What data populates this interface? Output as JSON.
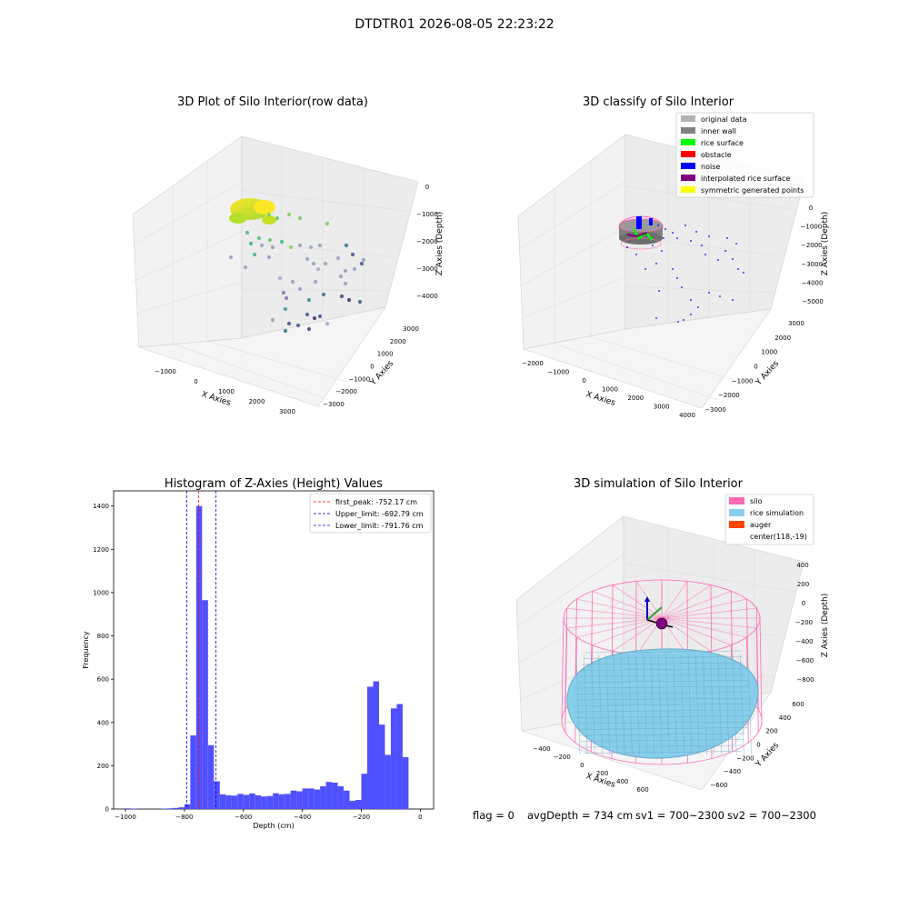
{
  "figure": {
    "suptitle": "DTDTR01 2026-08-05 22:23:22",
    "status_line": {
      "flag": "flag = 0",
      "avg_depth": "avgDepth = 734 cm",
      "sv1": "sv1 = 700~2300",
      "sv2": "sv2 = 700~2300"
    }
  },
  "chart_data": [
    {
      "type": "scatter",
      "projection": "3d",
      "title": "3D Plot of Silo Interior(row data)",
      "xlabel": "X Axies",
      "ylabel": "Y Axies",
      "zlabel": "Z Axies (Depth)",
      "x_ticks": [
        "−1000",
        "0",
        "1000",
        "2000",
        "3000"
      ],
      "y_ticks": [
        "−3000",
        "−2000",
        "−1000",
        "0",
        "1000",
        "2000",
        "3000"
      ],
      "z_ticks": [
        "0",
        "−1000",
        "−2000",
        "−3000",
        "−4000"
      ],
      "colormap": "viridis",
      "series": [
        {
          "points": [
            {
              "x": 420,
              "y": 80,
              "z": -1500
            },
            {
              "x": 1200,
              "y": 300,
              "z": -1800
            },
            {
              "x": 2600,
              "y": -400,
              "z": -2000
            },
            {
              "x": 1800,
              "y": 1200,
              "z": -2500
            },
            {
              "x": 2800,
              "y": 1600,
              "z": -2700
            },
            {
              "x": 1500,
              "y": 1800,
              "z": -3400
            },
            {
              "x": 2600,
              "y": 2400,
              "z": -3600
            },
            {
              "x": 800,
              "y": 1500,
              "z": -3900
            },
            {
              "x": 1800,
              "y": 2500,
              "z": -4200
            }
          ]
        }
      ]
    },
    {
      "type": "scatter",
      "projection": "3d",
      "title": "3D classify of Silo Interior",
      "xlabel": "X Axies",
      "ylabel": "Y Axies",
      "zlabel": "Z Axies (Depth)",
      "x_ticks": [
        "−2000",
        "−1000",
        "0",
        "1000",
        "2000",
        "3000",
        "4000"
      ],
      "y_ticks": [
        "−3000",
        "−2000",
        "−1000",
        "0",
        "1000",
        "2000",
        "3000"
      ],
      "z_ticks": [
        "0",
        "−1000",
        "−2000",
        "−3000",
        "−4000",
        "−5000"
      ],
      "legend": {
        "position": "upper right",
        "entries": [
          {
            "label": "original data",
            "color": "#b4b4b4"
          },
          {
            "label": "inner wall",
            "color": "#808080"
          },
          {
            "label": "rice surface",
            "color": "#00ff00"
          },
          {
            "label": "obstacle",
            "color": "#ff0000"
          },
          {
            "label": "noise",
            "color": "#0000ff"
          },
          {
            "label": "interpolated rice surface",
            "color": "#800080"
          },
          {
            "label": "symmetric generated points",
            "color": "#ffff00"
          }
        ]
      }
    },
    {
      "type": "bar",
      "title": "Histogram of Z-Axies (Height) Values",
      "xlabel": "Depth (cm)",
      "ylabel": "Frequency",
      "xlim": [
        -1040,
        45
      ],
      "ylim": [
        0,
        1470
      ],
      "x_ticks": [
        -1000,
        -800,
        -600,
        -400,
        -200,
        0
      ],
      "x_tick_labels": [
        "−1000",
        "−800",
        "−600",
        "−400",
        "−200",
        "0"
      ],
      "y_ticks": [
        0,
        200,
        400,
        600,
        800,
        1000,
        1200,
        1400
      ],
      "bar_color": "#5050ff",
      "bin_width": 20,
      "bins": [
        {
          "x": -990,
          "y": 3
        },
        {
          "x": -970,
          "y": 2
        },
        {
          "x": -870,
          "y": 2
        },
        {
          "x": -850,
          "y": 3
        },
        {
          "x": -830,
          "y": 5
        },
        {
          "x": -810,
          "y": 8
        },
        {
          "x": -790,
          "y": 22
        },
        {
          "x": -770,
          "y": 340
        },
        {
          "x": -750,
          "y": 1400
        },
        {
          "x": -730,
          "y": 965
        },
        {
          "x": -710,
          "y": 295
        },
        {
          "x": -690,
          "y": 128
        },
        {
          "x": -670,
          "y": 68
        },
        {
          "x": -650,
          "y": 63
        },
        {
          "x": -630,
          "y": 62
        },
        {
          "x": -610,
          "y": 70
        },
        {
          "x": -590,
          "y": 65
        },
        {
          "x": -570,
          "y": 72
        },
        {
          "x": -550,
          "y": 63
        },
        {
          "x": -530,
          "y": 58
        },
        {
          "x": -510,
          "y": 60
        },
        {
          "x": -490,
          "y": 73
        },
        {
          "x": -470,
          "y": 68
        },
        {
          "x": -450,
          "y": 70
        },
        {
          "x": -430,
          "y": 85
        },
        {
          "x": -410,
          "y": 82
        },
        {
          "x": -390,
          "y": 95
        },
        {
          "x": -370,
          "y": 95
        },
        {
          "x": -350,
          "y": 90
        },
        {
          "x": -330,
          "y": 105
        },
        {
          "x": -310,
          "y": 125
        },
        {
          "x": -290,
          "y": 122
        },
        {
          "x": -270,
          "y": 105
        },
        {
          "x": -250,
          "y": 85
        },
        {
          "x": -230,
          "y": 38
        },
        {
          "x": -210,
          "y": 42
        },
        {
          "x": -190,
          "y": 163
        },
        {
          "x": -170,
          "y": 565
        },
        {
          "x": -150,
          "y": 590
        },
        {
          "x": -130,
          "y": 390
        },
        {
          "x": -110,
          "y": 250
        },
        {
          "x": -90,
          "y": 465
        },
        {
          "x": -70,
          "y": 485
        },
        {
          "x": -50,
          "y": 240
        }
      ],
      "vlines": [
        {
          "x": -752.17,
          "color": "#ff0000",
          "label": "first_peak: -752.17 cm"
        },
        {
          "x": -692.79,
          "color": "#0000cc",
          "label": "Upper_limit: -692.79 cm"
        },
        {
          "x": -791.76,
          "color": "#0000cc",
          "label": "Lower_limit: -791.76 cm"
        }
      ],
      "legend_position": "upper right"
    },
    {
      "type": "surface",
      "projection": "3d",
      "title": "3D simulation of Silo Interior",
      "xlabel": "X Axies",
      "ylabel": "Y Axies",
      "zlabel": "Z Axies (Depth)",
      "x_ticks": [
        "−400",
        "−200",
        "0",
        "200",
        "400",
        "600"
      ],
      "y_ticks": [
        "−600",
        "−400",
        "−200",
        "0",
        "200",
        "400",
        "600"
      ],
      "z_ticks": [
        "400",
        "200",
        "0",
        "−200",
        "−400",
        "−600",
        "−800"
      ],
      "legend": {
        "position": "upper right",
        "entries": [
          {
            "label": "silo",
            "color": "#ff69b4"
          },
          {
            "label": "rice simulation",
            "color": "#87ceeb"
          },
          {
            "label": "auger",
            "color": "#ff4500"
          },
          {
            "label": "center(118,-19)",
            "color": ""
          }
        ]
      }
    }
  ]
}
